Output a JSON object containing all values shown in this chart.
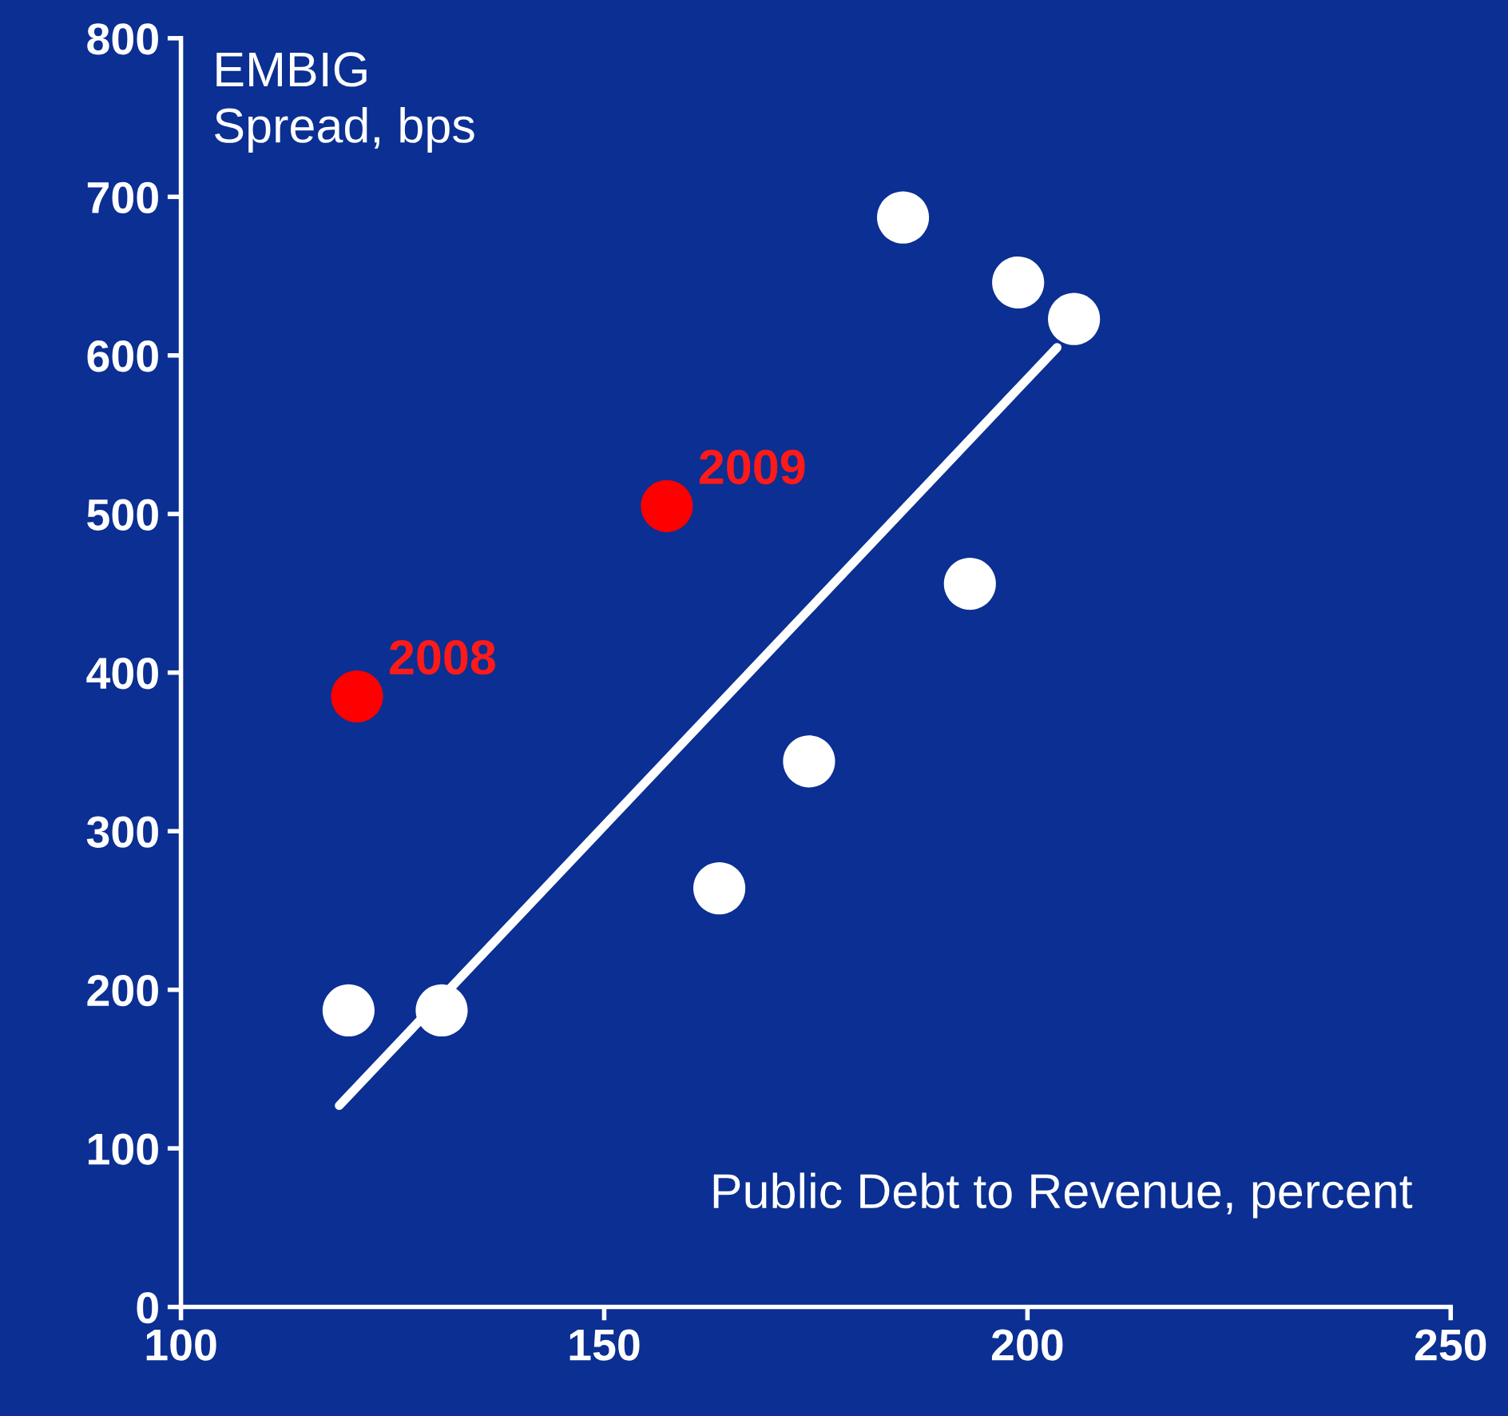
{
  "chart_data": {
    "type": "scatter",
    "ylabel": "EMBIG\nSpread, bps",
    "xlabel": "Public Debt to Revenue, percent",
    "xlim": [
      100,
      250
    ],
    "xticks": [
      100,
      150,
      200,
      250
    ],
    "ylim": [
      0,
      800
    ],
    "yticks": [
      0,
      100,
      200,
      300,
      400,
      500,
      600,
      700,
      800
    ],
    "grid": false,
    "legend": false,
    "marker": "circle",
    "series": [
      {
        "type": "line",
        "color": "#ffffff",
        "x": [
          118.7,
          203.5
        ],
        "values": [
          127,
          605
        ],
        "marker": "none"
      },
      {
        "color": "#ffffff",
        "x": [
          119.8,
          130.8,
          163.6,
          174.2,
          185.3,
          193.2,
          198.9,
          205.5
        ],
        "values": [
          187,
          187,
          264,
          344,
          687,
          456,
          646,
          623
        ]
      },
      {
        "color": "#ff0000",
        "x": [
          120.8,
          157.4
        ],
        "values": [
          385,
          505
        ]
      }
    ],
    "annotations": [
      {
        "text": "2008",
        "x": 120.8,
        "y": 385
      },
      {
        "text": "2009",
        "x": 157.4,
        "y": 505
      }
    ]
  }
}
